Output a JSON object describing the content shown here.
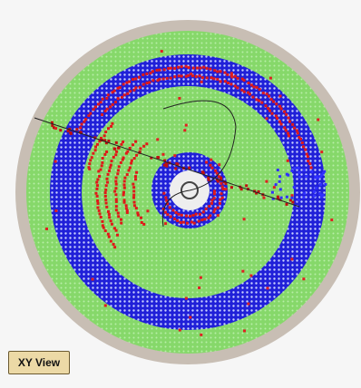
{
  "view_button": {
    "label": "XY View"
  }
}
